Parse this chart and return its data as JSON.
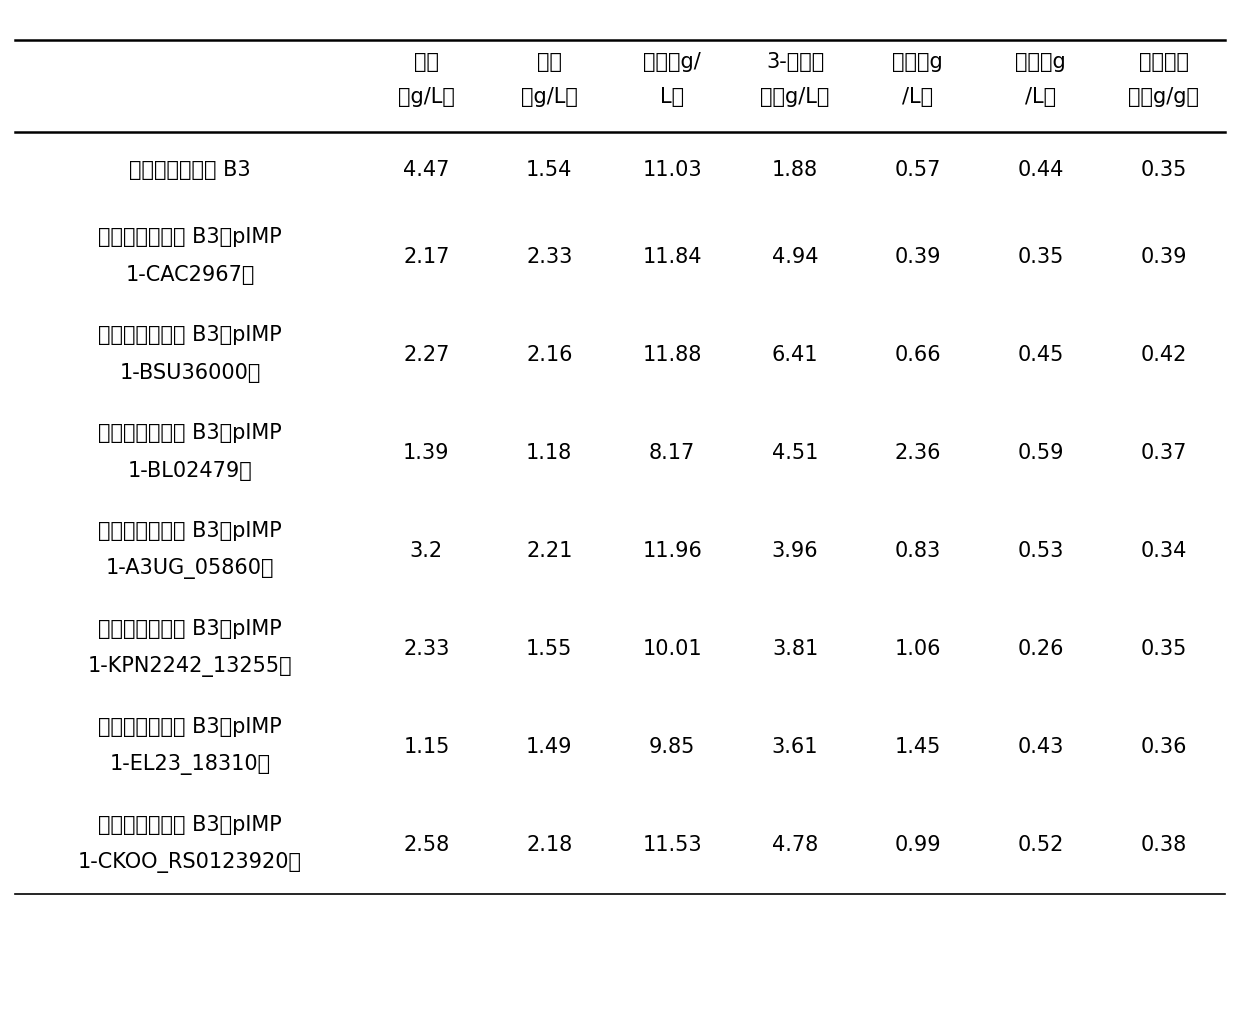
{
  "col_headers_line1": [
    "丙邅",
    "乙醇",
    "丁醇（g/",
    "3-羟基丁",
    "乙酸（g",
    "丁酸（g",
    "总溶剂得"
  ],
  "col_headers_line2": [
    "（g/L）",
    "（g/L）",
    "L）",
    "邅（g/L）",
    "/L）",
    "/L）",
    "率（g/g）"
  ],
  "rows": [
    {
      "label_line1": "丙邅丁醇梭杆菌 B3",
      "label_line2": "",
      "values": [
        "4.47",
        "1.54",
        "11.03",
        "1.88",
        "0.57",
        "0.44",
        "0.35"
      ]
    },
    {
      "label_line1": "丙邅丁醇梭杆菌 B3（pIMP",
      "label_line2": "1-CAC2967）",
      "values": [
        "2.17",
        "2.33",
        "11.84",
        "4.94",
        "0.39",
        "0.35",
        "0.39"
      ]
    },
    {
      "label_line1": "丙邅丁醇梭杆菌 B3（pIMP",
      "label_line2": "1-BSU36000）",
      "values": [
        "2.27",
        "2.16",
        "11.88",
        "6.41",
        "0.66",
        "0.45",
        "0.42"
      ]
    },
    {
      "label_line1": "丙邅丁醇梭杆菌 B3（pIMP",
      "label_line2": "1-BL02479）",
      "values": [
        "1.39",
        "1.18",
        "8.17",
        "4.51",
        "2.36",
        "0.59",
        "0.37"
      ]
    },
    {
      "label_line1": "丙邅丁醇梭杆菌 B3（pIMP",
      "label_line2": "1-A3UG_05860）",
      "values": [
        "3.2",
        "2.21",
        "11.96",
        "3.96",
        "0.83",
        "0.53",
        "0.34"
      ]
    },
    {
      "label_line1": "丙邅丁醇梭杆菌 B3（pIMP",
      "label_line2": "1-KPN2242_13255）",
      "values": [
        "2.33",
        "1.55",
        "10.01",
        "3.81",
        "1.06",
        "0.26",
        "0.35"
      ]
    },
    {
      "label_line1": "丙邅丁醇梭杆菌 B3（pIMP",
      "label_line2": "1-EL23_18310）",
      "values": [
        "1.15",
        "1.49",
        "9.85",
        "3.61",
        "1.45",
        "0.43",
        "0.36"
      ]
    },
    {
      "label_line1": "丙邅丁醇梭杆菌 B3（pIMP",
      "label_line2": "1-CKOO_RS0123920）",
      "values": [
        "2.58",
        "2.18",
        "11.53",
        "4.78",
        "0.99",
        "0.52",
        "0.38"
      ]
    }
  ],
  "font_size_header": 15,
  "font_size_body": 15,
  "font_size_label": 15,
  "text_color": "#000000",
  "bg_color": "#ffffff",
  "line_color": "#000000"
}
